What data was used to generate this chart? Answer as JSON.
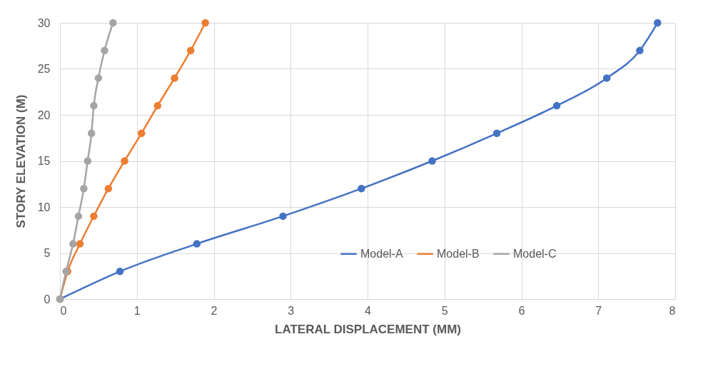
{
  "chart_data": {
    "type": "line",
    "xlabel": "LATERAL DISPLACEMENT (MM)",
    "ylabel": "STORY ELEVATION (M)",
    "xlim": [
      0,
      8
    ],
    "xticks": [
      0,
      1,
      2,
      3,
      4,
      5,
      6,
      7,
      8
    ],
    "ylim": [
      0,
      30
    ],
    "yticks": [
      0,
      5,
      10,
      15,
      20,
      25,
      30
    ],
    "grid": true,
    "legend": "bottom right",
    "marker": "circle",
    "line_style": "solid",
    "series": [
      {
        "name": "Model-A",
        "color": "#4472c4",
        "x": [
          0,
          0.78,
          1.78,
          2.9,
          3.92,
          4.84,
          5.68,
          6.46,
          7.11,
          7.54,
          7.77
        ],
        "values": [
          0,
          3,
          6,
          9,
          12,
          15,
          18,
          21,
          24,
          27,
          30
        ]
      },
      {
        "name": "Model-B",
        "color": "#ed7d31",
        "x": [
          0,
          0.1,
          0.26,
          0.44,
          0.63,
          0.84,
          1.06,
          1.27,
          1.49,
          1.7,
          1.89
        ],
        "values": [
          0,
          3,
          6,
          9,
          12,
          15,
          18,
          21,
          24,
          27,
          30
        ]
      },
      {
        "name": "Model-C",
        "color": "#a5a5a5",
        "x": [
          0,
          0.08,
          0.17,
          0.24,
          0.31,
          0.36,
          0.41,
          0.44,
          0.5,
          0.58,
          0.69
        ],
        "values": [
          0,
          3,
          6,
          9,
          12,
          15,
          18,
          21,
          24,
          27,
          30
        ]
      }
    ]
  }
}
